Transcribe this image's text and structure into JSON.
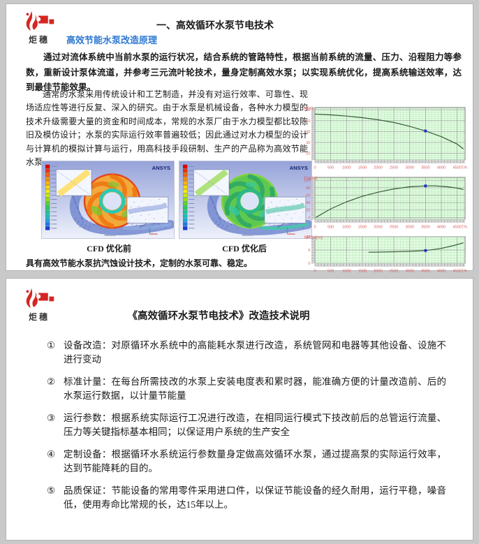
{
  "logo": {
    "text": "炬穗"
  },
  "page1": {
    "title": "一、高效循环水泵节电技术",
    "subtitle": "高效节能水泵改造原理",
    "para1": "通过对流体系统中当前水泵的运行状况，结合系统的管路特性，根据当前系统的流量、压力、沿程阻力等参数，重新设计泵体流道，并参考三元流叶轮技术，量身定制高效水泵；以实现系统优化，提高系统输送效率，达到最佳节能效果。",
    "para2": "通常的水泵采用传统设计和工艺制造，并没有对运行效率、可靠性、现场适应性等进行反复、深入的研究。由于水泵是机械设备，各种水力模型的技术升级需要大量的资金和时间成本，常规的水泵厂由于水力模型都比较陈旧及模仿设计；水泵的实际运行效率普遍较低；因此通过对水力模型的设计与计算机的模拟计算与运行，用高科技手段研制、生产的产品称为高效节能水泵。",
    "footer_note": "具有高效节能水泵抗汽蚀设计技术，定制的水泵可靠、稳定。",
    "cfd": {
      "ansys_label": "ANSYS",
      "before_caption": "CFD 优化前",
      "after_caption": "CFD 优化后",
      "legend_colors": [
        "#e00000",
        "#f03300",
        "#f96100",
        "#ff8a00",
        "#ffb400",
        "#ffd900",
        "#f4ef00",
        "#c9ec00",
        "#94e215",
        "#55d52e",
        "#2bcb5e",
        "#17c68f",
        "#10c1b5",
        "#14a8dd",
        "#1d77e6",
        "#1440d6"
      ],
      "before_scheme": {
        "ring": "#f2a93b",
        "blade": "#ef7713",
        "patch": "#7bc832",
        "rim": "#e2481d",
        "hub": "#2ec8b0",
        "duct": "#8fa8e0",
        "inset1": "#ffe06a",
        "inset2": "#aebde8"
      },
      "after_scheme": {
        "ring": "#5ec94e",
        "blade": "#2fa865",
        "patch": "#36c9a2",
        "rim": "#86d348",
        "hub": "#2db887",
        "duct": "#47c6ae",
        "inset1": "#a8e070",
        "inset2": "#7fd4bf"
      }
    }
  },
  "chart_data": [
    {
      "type": "line",
      "title": "H(m)",
      "xlabel": "T/h",
      "xlim": [
        0,
        4750
      ],
      "xticks": [
        0,
        500,
        1000,
        1500,
        2000,
        2500,
        3000,
        3500,
        4000,
        4500
      ],
      "ylim": [
        14,
        62
      ],
      "yticks": [
        20,
        30,
        40,
        50,
        60
      ],
      "y_minor": 2,
      "points": [
        [
          0,
          56
        ],
        [
          500,
          55.3
        ],
        [
          1000,
          54.2
        ],
        [
          1500,
          52.7
        ],
        [
          2000,
          50.8
        ],
        [
          2500,
          48.3
        ],
        [
          3000,
          44.8
        ],
        [
          3500,
          40.5
        ],
        [
          4000,
          35.3
        ],
        [
          4500,
          28.5
        ],
        [
          4700,
          24
        ]
      ],
      "marker": [
        3500,
        40.5
      ],
      "grid": true,
      "legend": "none"
    },
    {
      "type": "line",
      "title": "Eta(%)",
      "xlabel": "T/h",
      "xlim": [
        0,
        4750
      ],
      "xticks": [
        0,
        500,
        1000,
        1500,
        2000,
        2500,
        3000,
        3500,
        4000,
        4500
      ],
      "ylim": [
        -5,
        108
      ],
      "yticks": [
        0,
        20,
        40,
        60,
        80,
        100
      ],
      "y_minor": 5,
      "points": [
        [
          30,
          0
        ],
        [
          500,
          23
        ],
        [
          1000,
          42
        ],
        [
          1500,
          57
        ],
        [
          2000,
          68
        ],
        [
          2500,
          77
        ],
        [
          3000,
          82.5
        ],
        [
          3500,
          85
        ],
        [
          3800,
          85.3
        ],
        [
          4200,
          82.5
        ],
        [
          4500,
          79
        ],
        [
          4700,
          75.5
        ]
      ],
      "marker": [
        3500,
        85
      ],
      "grid": true,
      "legend": "none"
    },
    {
      "type": "line",
      "title": "NPSH(m)",
      "xlabel": "T/h",
      "xlim": [
        0,
        4750
      ],
      "xticks": [
        0,
        500,
        1000,
        1500,
        2000,
        2500,
        3000,
        3500,
        4000,
        4500
      ],
      "ylim": [
        0,
        10
      ],
      "yticks": [
        0,
        5,
        10
      ],
      "y_minor": 1,
      "points": [
        [
          1700,
          4.15
        ],
        [
          2200,
          4.25
        ],
        [
          2700,
          4.4
        ],
        [
          3200,
          4.6
        ],
        [
          3500,
          4.8
        ],
        [
          4000,
          5.6
        ],
        [
          4400,
          6.7
        ],
        [
          4700,
          7.7
        ]
      ],
      "marker": [
        3500,
        4.8
      ],
      "grid": true,
      "legend": "none"
    }
  ],
  "page2": {
    "title": "《高效循环水泵节电技术》改造技术说明",
    "items": [
      {
        "num": "①",
        "text": "设备改造：对原循环水系统中的高能耗水泵进行改造，系统管网和电器等其他设备、设施不进行变动"
      },
      {
        "num": "②",
        "text": "标准计量：在每台所需技改的水泵上安装电度表和累时器，能准确方便的计量改造前、后的水泵运行数据，以计量节能量"
      },
      {
        "num": "③",
        "text": "运行参数：根据系统实际运行工况进行改造，在相同运行模式下技改前后的总管运行流量、压力等关键指标基本相同；以保证用户系统的生产安全"
      },
      {
        "num": "④",
        "text": "定制设备：根据循环水系统运行参数量身定做高效循环水泵，通过提高泵的实际运行效率，达到节能降耗的目的。"
      },
      {
        "num": "⑤",
        "text": "品质保证：节能设备的常用零件采用进口件，以保证节能设备的经久耐用，运行平稳，噪音低，使用寿命比常规的长，达15年以上。"
      }
    ]
  },
  "colors": {
    "accent_blue": "#2e78d2",
    "logo_red": "#d42723",
    "chart_tick_red": "#d96060",
    "curve_green": "#355e35",
    "marker_blue": "#1b2ecc",
    "plot_bg": "#e4fbe4",
    "grid_minor": "#b2e8b2",
    "grid_major": "#9aa79a",
    "page_bg": "#c9c9c9"
  }
}
